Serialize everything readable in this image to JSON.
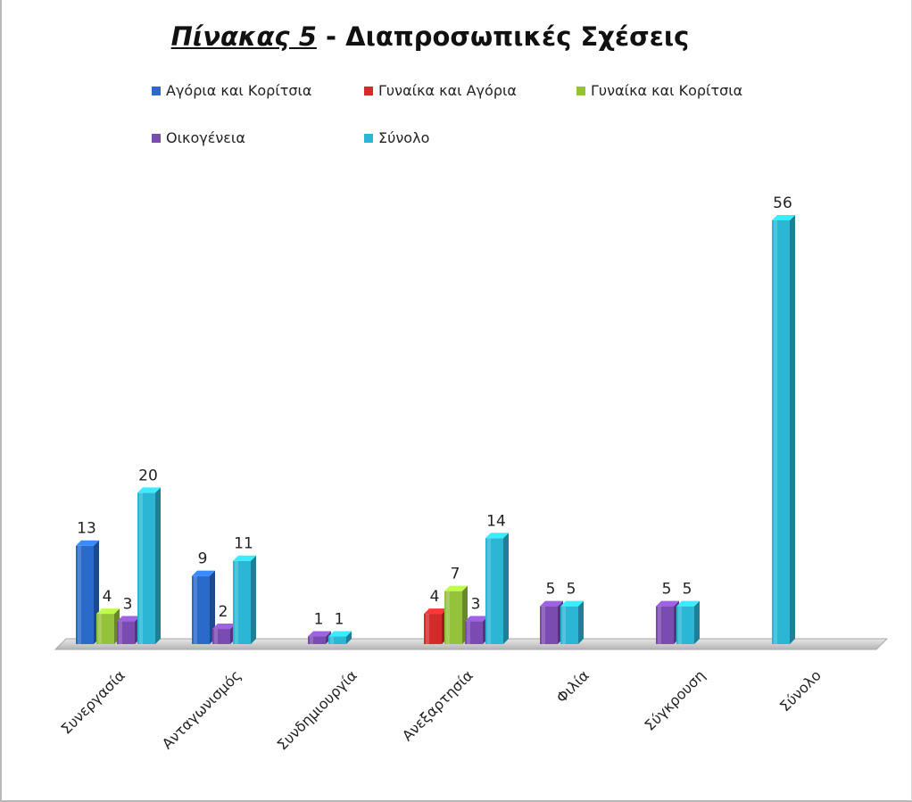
{
  "chart_data": {
    "type": "bar",
    "title": "Πίνακας 5",
    "title_suffix": "- Διαπροσωπικές Σχέσεις",
    "categories": [
      "Συνεργασία",
      "Ανταγωνισμός",
      "Συνδημιουργία",
      "Ανεξαρτησία",
      "Φιλία",
      "Σύγκρουση",
      "Σύνολο"
    ],
    "series": [
      {
        "name": "Αγόρια και Κορίτσια",
        "color": "#2a6ac8",
        "values": [
          13,
          9,
          null,
          null,
          null,
          null,
          null
        ]
      },
      {
        "name": "Γυναίκα και Αγόρια",
        "color": "#d42a2a",
        "values": [
          null,
          null,
          null,
          4,
          null,
          null,
          null
        ]
      },
      {
        "name": "Γυναίκα και Κορίτσια",
        "color": "#94c23a",
        "values": [
          4,
          null,
          null,
          7,
          null,
          null,
          null
        ]
      },
      {
        "name": "Οικογένεια",
        "color": "#7a4bb0",
        "values": [
          3,
          2,
          1,
          3,
          5,
          5,
          null
        ]
      },
      {
        "name": "Σύνολο",
        "color": "#2cb6d6",
        "values": [
          20,
          11,
          1,
          14,
          5,
          5,
          56
        ]
      }
    ],
    "ylim": [
      0,
      56
    ],
    "grid": false,
    "legend_position": "top",
    "style": "3d-clustered-column"
  }
}
